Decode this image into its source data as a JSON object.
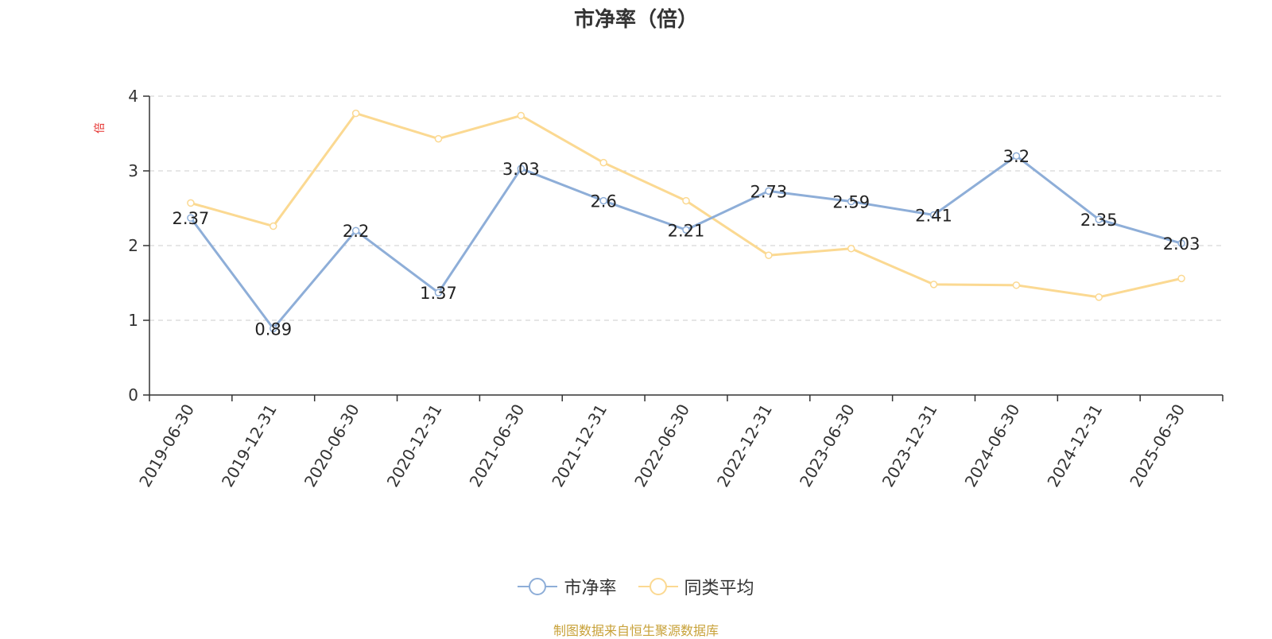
{
  "chart_data": {
    "type": "line",
    "title": "市净率（倍）",
    "ylabel": "倍",
    "xlabel": "",
    "ylim": [
      0,
      4
    ],
    "yticks": [
      0,
      1,
      2,
      3,
      4
    ],
    "grid": true,
    "legend_position": "bottom",
    "categories": [
      "2019-06-30",
      "2019-12-31",
      "2020-06-30",
      "2020-12-31",
      "2021-06-30",
      "2021-12-31",
      "2022-06-30",
      "2022-12-31",
      "2023-06-30",
      "2023-12-31",
      "2024-06-30",
      "2024-12-31",
      "2025-06-30"
    ],
    "series": [
      {
        "name": "市净率",
        "color": "#8eaed8",
        "show_labels": true,
        "values": [
          2.37,
          0.89,
          2.2,
          1.37,
          3.03,
          2.6,
          2.21,
          2.73,
          2.59,
          2.41,
          3.2,
          2.35,
          2.03
        ]
      },
      {
        "name": "同类平均",
        "color": "#fbd992",
        "show_labels": false,
        "values": [
          2.57,
          2.26,
          3.77,
          3.43,
          3.74,
          3.11,
          2.6,
          1.87,
          1.96,
          1.48,
          1.47,
          1.31,
          1.56
        ]
      }
    ]
  },
  "source_text": "制图数据来自恒生聚源数据库"
}
